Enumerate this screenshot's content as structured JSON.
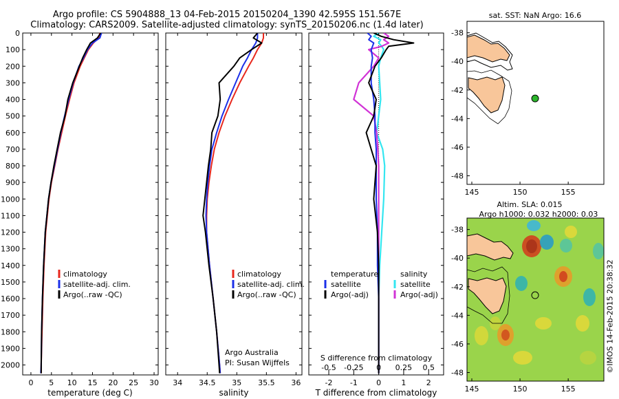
{
  "header": {
    "line1": "Argo profile: CS 5904888_13 04-Feb-2015 20150204_1390 42.595S 151.567E",
    "line2": "Climatology: CARS2009. Satellite-adjusted climatology: synTS_20150206.nc (1.4d later)"
  },
  "credits": {
    "org": "Argo Australia",
    "pi": "PI: Susan Wijffels",
    "imos": "©IMOS 14-Feb-2015 20:38:32"
  },
  "colors": {
    "climatology": "#e8271c",
    "satellite": "#1b2fe8",
    "argo": "#000000",
    "sal_satellite": "#33e6f0",
    "sal_argo": "#d133d6",
    "land": "#f8c69a",
    "marker": "#2bb52b"
  },
  "chart_data": [
    {
      "type": "line",
      "xlabel": "temperature (deg C)",
      "ylabel": "",
      "xlim": [
        -2,
        31
      ],
      "ylim": [
        2060,
        0
      ],
      "xticks": [
        "0",
        "5",
        "10",
        "15",
        "20",
        "25",
        "30"
      ],
      "yticks": [
        "0",
        "100",
        "200",
        "300",
        "400",
        "500",
        "600",
        "700",
        "800",
        "900",
        "1000",
        "1100",
        "1200",
        "1300",
        "1400",
        "1500",
        "1600",
        "1700",
        "1800",
        "1900",
        "2000"
      ],
      "legend": [
        "climatology",
        "satellite-adj. clim.",
        "Argo(..raw -QC)"
      ],
      "y": [
        0,
        30,
        60,
        100,
        150,
        200,
        300,
        400,
        500,
        600,
        700,
        800,
        900,
        1000,
        1200,
        1400,
        1600,
        1800,
        2000,
        2050
      ],
      "series": [
        {
          "name": "climatology",
          "values": [
            16.8,
            16.5,
            15.2,
            14.0,
            13.0,
            12.0,
            10.5,
            9.4,
            8.4,
            7.5,
            6.6,
            5.8,
            5.0,
            4.4,
            3.6,
            3.2,
            2.9,
            2.7,
            2.5,
            2.5
          ]
        },
        {
          "name": "satellite-adj. clim.",
          "values": [
            17.2,
            16.8,
            15.0,
            13.8,
            12.8,
            11.7,
            10.3,
            9.2,
            8.2,
            7.3,
            6.5,
            5.7,
            4.9,
            4.3,
            3.5,
            3.1,
            2.8,
            2.6,
            2.5,
            2.4
          ]
        },
        {
          "name": "Argo(..raw -QC)",
          "values": [
            17.0,
            16.2,
            14.5,
            13.6,
            12.6,
            11.8,
            10.2,
            9.0,
            8.3,
            7.2,
            6.4,
            5.6,
            4.9,
            4.3,
            3.5,
            3.1,
            2.8,
            2.6,
            2.5,
            2.5
          ]
        }
      ]
    },
    {
      "type": "line",
      "xlabel": "salinity",
      "xlim": [
        33.8,
        36.1
      ],
      "ylim": [
        2060,
        0
      ],
      "xticks": [
        "34",
        "34.5",
        "35",
        "35.5",
        "36"
      ],
      "legend": [
        "climatology",
        "satellite-adj. clim.",
        "Argo(..raw -QC)"
      ],
      "y": [
        0,
        30,
        60,
        100,
        150,
        200,
        300,
        400,
        500,
        600,
        700,
        800,
        900,
        1000,
        1100,
        1200,
        1400,
        1600,
        1800,
        2000,
        2050
      ],
      "series": [
        {
          "name": "climatology",
          "values": [
            35.45,
            35.45,
            35.42,
            35.35,
            35.28,
            35.2,
            35.05,
            34.92,
            34.8,
            34.7,
            34.62,
            34.57,
            34.53,
            34.5,
            34.49,
            34.49,
            34.54,
            34.6,
            34.66,
            34.71,
            34.72
          ]
        },
        {
          "name": "satellite-adj. clim.",
          "values": [
            35.35,
            35.35,
            35.32,
            35.25,
            35.18,
            35.1,
            34.98,
            34.86,
            34.75,
            34.66,
            34.58,
            34.54,
            34.51,
            34.49,
            34.48,
            34.49,
            34.54,
            34.6,
            34.66,
            34.71,
            34.72
          ]
        },
        {
          "name": "Argo(..raw -QC)",
          "values": [
            35.35,
            35.28,
            35.42,
            35.25,
            35.05,
            34.95,
            34.7,
            34.72,
            34.68,
            34.58,
            34.56,
            34.52,
            34.49,
            34.46,
            34.43,
            34.47,
            34.53,
            34.6,
            34.66,
            34.7,
            34.71
          ]
        }
      ]
    },
    {
      "type": "line",
      "xlabel": "T difference from climatology",
      "xlabel_top": "S difference from climatology",
      "xlim": [
        -2.8,
        2.6
      ],
      "ylim": [
        2060,
        0
      ],
      "xticks": [
        "-2",
        "-1",
        "0",
        "1",
        "2"
      ],
      "xticks_top": [
        "-0.5",
        "-0.25",
        "0",
        "0.25",
        "0.5"
      ],
      "legend": [
        "temperature",
        "satellite",
        "Argo(-adj)",
        "salinity",
        "satellite",
        "Argo(-adj)"
      ],
      "y": [
        0,
        20,
        40,
        60,
        80,
        100,
        150,
        200,
        300,
        400,
        500,
        600,
        700,
        800,
        1000,
        1200,
        1400,
        1600,
        1800,
        2000,
        2050
      ],
      "series": [
        {
          "name": "T satellite",
          "values": [
            -0.45,
            -0.3,
            -0.4,
            -0.2,
            -0.25,
            -0.3,
            -0.25,
            -0.3,
            -0.3,
            -0.2,
            -0.15,
            -0.15,
            -0.1,
            -0.1,
            -0.1,
            -0.05,
            -0.05,
            0,
            0,
            0,
            0
          ]
        },
        {
          "name": "T Argo(-adj)",
          "values": [
            -0.2,
            0.1,
            0.6,
            1.4,
            0.4,
            0.3,
            0.1,
            -0.15,
            -0.4,
            -0.1,
            -0.2,
            -0.5,
            -0.3,
            -0.1,
            -0.2,
            -0.05,
            0,
            0,
            0,
            0,
            0
          ]
        },
        {
          "name": "S satellite",
          "values": [
            0.0,
            -0.05,
            0.02,
            0.0,
            0.03,
            0.05,
            0.02,
            0.0,
            0.01,
            0.02,
            0.0,
            -0.02,
            0.04,
            0.06,
            0.05,
            0.03,
            0.01,
            0,
            0,
            0,
            0
          ]
        },
        {
          "name": "S Argo(-adj)",
          "values": [
            0.05,
            0.1,
            0.05,
            0.1,
            0.03,
            -0.1,
            0.0,
            -0.05,
            -0.2,
            -0.25,
            -0.05,
            -0.02,
            -0.01,
            0.0,
            0.0,
            0.0,
            0,
            0,
            0,
            0,
            0
          ]
        }
      ]
    },
    {
      "type": "scatter",
      "title": "sat. SST: NaN Argo: 16.6",
      "xlim": [
        144.5,
        158.7
      ],
      "ylim": [
        -48.6,
        -37.2
      ],
      "xticks": [
        "145",
        "150",
        "155"
      ],
      "yticks": [
        "-38",
        "-40",
        "-42",
        "-44",
        "-46",
        "-48"
      ],
      "points": [
        {
          "x": 151.567,
          "y": -42.595
        }
      ]
    },
    {
      "type": "heatmap",
      "title": "Altim. SLA: 0.015",
      "subtitle": "Argo h1000: 0.032 h2000: 0.03",
      "xlim": [
        144.5,
        158.7
      ],
      "ylim": [
        -48.6,
        -37.2
      ],
      "xticks": [
        "145",
        "150",
        "155"
      ],
      "yticks": [
        "-38",
        "-40",
        "-42",
        "-44",
        "-46",
        "-48"
      ],
      "points": [
        {
          "x": 151.567,
          "y": -42.595
        }
      ]
    }
  ]
}
